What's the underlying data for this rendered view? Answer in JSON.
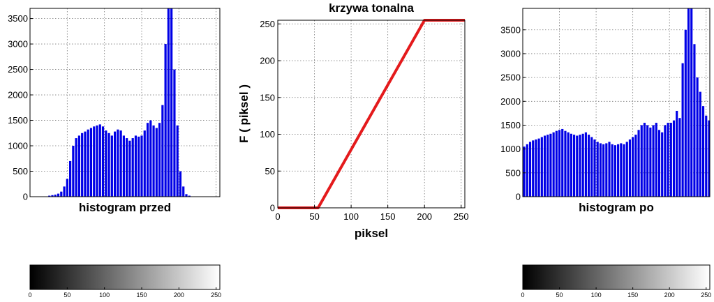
{
  "chart_data": [
    {
      "type": "bar",
      "xlabel": "histogram przed",
      "ylabel": "",
      "xlim": [
        0,
        255
      ],
      "ylim": [
        0,
        3700
      ],
      "yticks": [
        0,
        500,
        1000,
        1500,
        2000,
        2500,
        3000,
        3500
      ],
      "grid": true,
      "color": "#0000e6",
      "bins": [
        0,
        4,
        8,
        12,
        16,
        20,
        24,
        28,
        32,
        36,
        40,
        44,
        48,
        52,
        56,
        60,
        64,
        68,
        72,
        76,
        80,
        84,
        88,
        92,
        96,
        100,
        104,
        108,
        112,
        116,
        120,
        124,
        128,
        132,
        136,
        140,
        144,
        148,
        152,
        156,
        160,
        164,
        168,
        172,
        176,
        180,
        184,
        188,
        192,
        196,
        200,
        204,
        208,
        212,
        216,
        220,
        224,
        228,
        232,
        236,
        240,
        244,
        248,
        252
      ],
      "values": [
        0,
        0,
        0,
        0,
        0,
        0,
        20,
        30,
        40,
        60,
        100,
        200,
        350,
        700,
        1000,
        1150,
        1200,
        1250,
        1280,
        1320,
        1350,
        1380,
        1400,
        1420,
        1380,
        1300,
        1250,
        1200,
        1280,
        1320,
        1300,
        1200,
        1150,
        1100,
        1150,
        1200,
        1180,
        1200,
        1300,
        1450,
        1500,
        1400,
        1350,
        1450,
        1800,
        3000,
        3700,
        3700,
        2500,
        1400,
        500,
        200,
        50,
        20,
        5,
        0,
        0,
        0,
        0,
        0,
        0,
        0,
        0,
        0
      ]
    },
    {
      "type": "line",
      "title": "krzywa tonalna",
      "xlabel": "piksel",
      "ylabel": "F ( piksel )",
      "xlim": [
        0,
        255
      ],
      "ylim": [
        0,
        255
      ],
      "xticks": [
        0,
        50,
        100,
        150,
        200,
        250
      ],
      "yticks": [
        0,
        50,
        100,
        150,
        200,
        250
      ],
      "grid": true,
      "color": "#e41a1c",
      "x": [
        0,
        55,
        200,
        255
      ],
      "y": [
        0,
        0,
        255,
        255
      ]
    },
    {
      "type": "bar",
      "xlabel": "histogram po",
      "ylabel": "",
      "xlim": [
        0,
        255
      ],
      "ylim": [
        0,
        3950
      ],
      "yticks": [
        0,
        500,
        1000,
        1500,
        2000,
        2500,
        3000,
        3500
      ],
      "grid": true,
      "color": "#0000e6",
      "bins": [
        0,
        4,
        8,
        12,
        16,
        20,
        24,
        28,
        32,
        36,
        40,
        44,
        48,
        52,
        56,
        60,
        64,
        68,
        72,
        76,
        80,
        84,
        88,
        92,
        96,
        100,
        104,
        108,
        112,
        116,
        120,
        124,
        128,
        132,
        136,
        140,
        144,
        148,
        152,
        156,
        160,
        164,
        168,
        172,
        176,
        180,
        184,
        188,
        192,
        196,
        200,
        204,
        208,
        212,
        216,
        220,
        224,
        228,
        232,
        236,
        240,
        244,
        248,
        252
      ],
      "values": [
        1050,
        1100,
        1150,
        1180,
        1200,
        1220,
        1250,
        1280,
        1300,
        1320,
        1350,
        1380,
        1400,
        1420,
        1380,
        1350,
        1320,
        1300,
        1280,
        1300,
        1320,
        1350,
        1300,
        1250,
        1200,
        1150,
        1120,
        1100,
        1120,
        1150,
        1100,
        1080,
        1100,
        1120,
        1100,
        1150,
        1200,
        1250,
        1300,
        1400,
        1500,
        1550,
        1500,
        1450,
        1500,
        1550,
        1400,
        1350,
        1500,
        1550,
        1550,
        1600,
        1800,
        1650,
        2800,
        3500,
        3950,
        3950,
        3200,
        2500,
        2200,
        1900,
        1700,
        1600
      ]
    }
  ],
  "colorbars": [
    {
      "ticks": [
        "0",
        "50",
        "100",
        "150",
        "200",
        "250"
      ]
    },
    {
      "ticks": [
        "0",
        "50",
        "100",
        "150",
        "200",
        "250"
      ]
    }
  ]
}
